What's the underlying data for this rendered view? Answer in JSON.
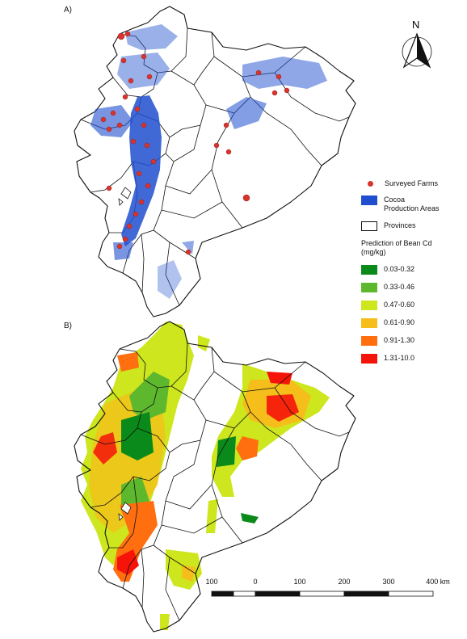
{
  "panels": [
    {
      "label": "A)"
    },
    {
      "label": "B)"
    }
  ],
  "north_arrow": {
    "letter": "N"
  },
  "legend": {
    "surveyed_farms": {
      "label": "Surveyed Farms",
      "color": "#d9332d"
    },
    "cocoa_areas": {
      "label": "Cocoa Production Areas",
      "color": "#1f4fcf"
    },
    "provinces": {
      "label": "Provinces"
    },
    "prediction_title": "Prediction of Bean Cd (mg/kg)",
    "classes": [
      {
        "label": "0.03-0.32",
        "color": "#0a8a1a"
      },
      {
        "label": "0.33-0.46",
        "color": "#5db82e"
      },
      {
        "label": "0.47-0.60",
        "color": "#cde61e"
      },
      {
        "label": "0.61-0.90",
        "color": "#f5be1a"
      },
      {
        "label": "0.91-1.30",
        "color": "#ff6f10"
      },
      {
        "label": "1.31-10.0",
        "color": "#f5130a"
      }
    ]
  },
  "scale_bar": {
    "labels": [
      "100",
      "0",
      "100",
      "200",
      "300",
      "400 km"
    ]
  }
}
